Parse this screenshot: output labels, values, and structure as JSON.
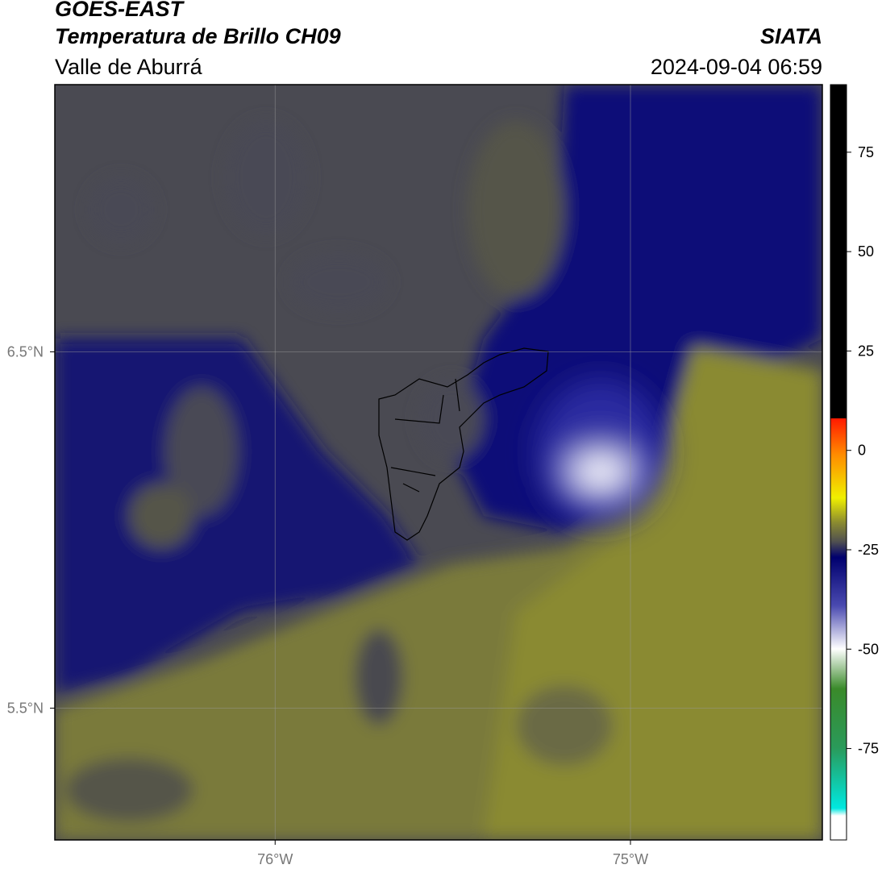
{
  "header": {
    "title": "GOES-EAST",
    "subtitle": "Temperatura de Brillo CH09",
    "region": "Valle de Aburrá",
    "source": "SIATA",
    "datetime": "2024-09-04 06:59"
  },
  "map": {
    "lonlim": [
      -76.62,
      -74.46
    ],
    "latlim": [
      5.13,
      7.25
    ],
    "lon_ticks": [
      {
        "value": -76,
        "label": "76°W"
      },
      {
        "value": -75,
        "label": "75°W"
      }
    ],
    "lat_ticks": [
      {
        "value": 6.5,
        "label": "6.5°N"
      },
      {
        "value": 5.5,
        "label": "5.5°N"
      }
    ],
    "grid": true
  },
  "colorbar": {
    "lim": [
      -98,
      92
    ],
    "ticks": [
      75,
      50,
      25,
      0,
      -25,
      -50,
      -75
    ]
  }
}
